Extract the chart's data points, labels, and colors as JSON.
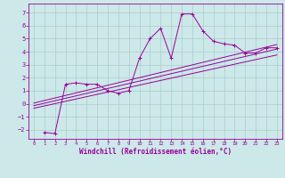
{
  "xlabel": "Windchill (Refroidissement éolien,°C)",
  "bg_color": "#cce8e8",
  "line_color": "#990099",
  "grid_color": "#aacccc",
  "xlim": [
    -0.5,
    23.5
  ],
  "ylim": [
    -2.7,
    7.7
  ],
  "xticks": [
    0,
    1,
    2,
    3,
    4,
    5,
    6,
    7,
    8,
    9,
    10,
    11,
    12,
    13,
    14,
    15,
    16,
    17,
    18,
    19,
    20,
    21,
    22,
    23
  ],
  "yticks": [
    -2,
    -1,
    0,
    1,
    2,
    3,
    4,
    5,
    6,
    7
  ],
  "main_x": [
    1,
    2,
    3,
    4,
    5,
    6,
    7,
    8,
    9,
    10,
    11,
    12,
    13,
    14,
    15,
    16,
    17,
    18,
    19,
    20,
    21,
    22,
    23
  ],
  "main_y": [
    -2.2,
    -2.3,
    1.5,
    1.6,
    1.5,
    1.5,
    1.0,
    0.8,
    1.0,
    3.5,
    5.0,
    5.8,
    3.5,
    6.9,
    6.9,
    5.6,
    4.8,
    4.6,
    4.5,
    3.9,
    3.9,
    4.3,
    4.3
  ],
  "line2_x": [
    0,
    23
  ],
  "line2_y": [
    -0.15,
    4.2
  ],
  "line3_x": [
    0,
    23
  ],
  "line3_y": [
    -0.35,
    3.75
  ],
  "line4_x": [
    0,
    23
  ],
  "line4_y": [
    0.05,
    4.55
  ]
}
